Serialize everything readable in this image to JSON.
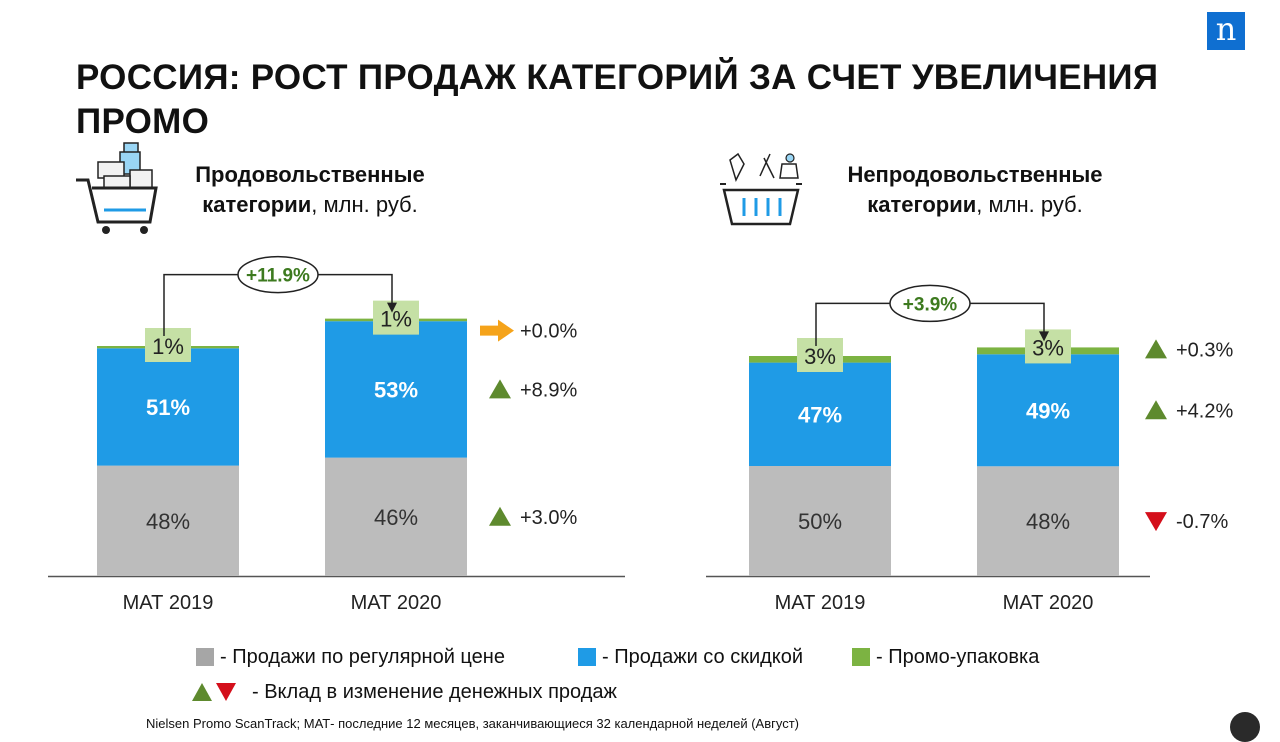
{
  "brand": {
    "logo_letter": "n",
    "color": "#0f6fd1"
  },
  "title": "РОССИЯ: РОСТ ПРОДАЖ КАТЕГОРИЙ ЗА СЧЕТ УВЕЛИЧЕНИЯ ПРОМО",
  "panels": [
    {
      "head_bold_1": "Продовольственные",
      "head_bold_2": "категории",
      "head_normal": ", млн. руб."
    },
    {
      "head_bold_1": "Непродовольственные",
      "head_bold_2": "категории",
      "head_normal": ", млн. руб."
    }
  ],
  "chart_data": [
    {
      "type": "bar",
      "stacked": true,
      "categories": [
        "МАТ 2019",
        "МАТ 2020"
      ],
      "series": [
        {
          "name": "Продажи по регулярной цене",
          "color": "#bcbcbc",
          "values": [
            48,
            46
          ],
          "labels": [
            "48%",
            "46%"
          ],
          "change": "+3.0%",
          "direction": "up"
        },
        {
          "name": "Продажи со скидкой",
          "color": "#1f9be6",
          "values": [
            51,
            53
          ],
          "labels": [
            "51%",
            "53%"
          ],
          "change": "+8.9%",
          "direction": "up"
        },
        {
          "name": "Промо-упаковка",
          "color": "#7cb342",
          "values": [
            1,
            1
          ],
          "labels": [
            "1%",
            "1%"
          ],
          "change": "+0.0%",
          "direction": "flat"
        }
      ],
      "totals_relative": [
        100,
        111.9
      ],
      "growth_label": "+11.9%"
    },
    {
      "type": "bar",
      "stacked": true,
      "categories": [
        "МАТ 2019",
        "МАТ 2020"
      ],
      "series": [
        {
          "name": "Продажи по регулярной цене",
          "color": "#bcbcbc",
          "values": [
            50,
            48
          ],
          "labels": [
            "50%",
            "48%"
          ],
          "change": "-0.7%",
          "direction": "down"
        },
        {
          "name": "Продажи со скидкой",
          "color": "#1f9be6",
          "values": [
            47,
            49
          ],
          "labels": [
            "47%",
            "49%"
          ],
          "change": "+4.2%",
          "direction": "up"
        },
        {
          "name": "Промо-упаковка",
          "color": "#7cb342",
          "values": [
            3,
            3
          ],
          "labels": [
            "3%",
            "3%"
          ],
          "change": "+0.3%",
          "direction": "up"
        }
      ],
      "totals_relative": [
        100,
        103.9
      ],
      "growth_label": "+3.9%"
    }
  ],
  "legend": {
    "items": [
      {
        "label": "- Продажи по регулярной цене",
        "color": "#a6a6a6"
      },
      {
        "label": "- Продажи со скидкой",
        "color": "#1f9be6"
      },
      {
        "label": "- Промо-упаковка",
        "color": "#7cb342"
      }
    ],
    "contribution_label": "- Вклад в изменение денежных продаж"
  },
  "source": "Nielsen Promo ScanTrack; МАТ- последние 12 месяцев, заканчивающиеся 32 календарной неделей (Август)",
  "colors": {
    "up": "#5e8a2e",
    "down": "#d40f1b",
    "flat": "#f5a31a",
    "label_box": "#c5e0a5",
    "growth_text": "#3d7a1f"
  }
}
